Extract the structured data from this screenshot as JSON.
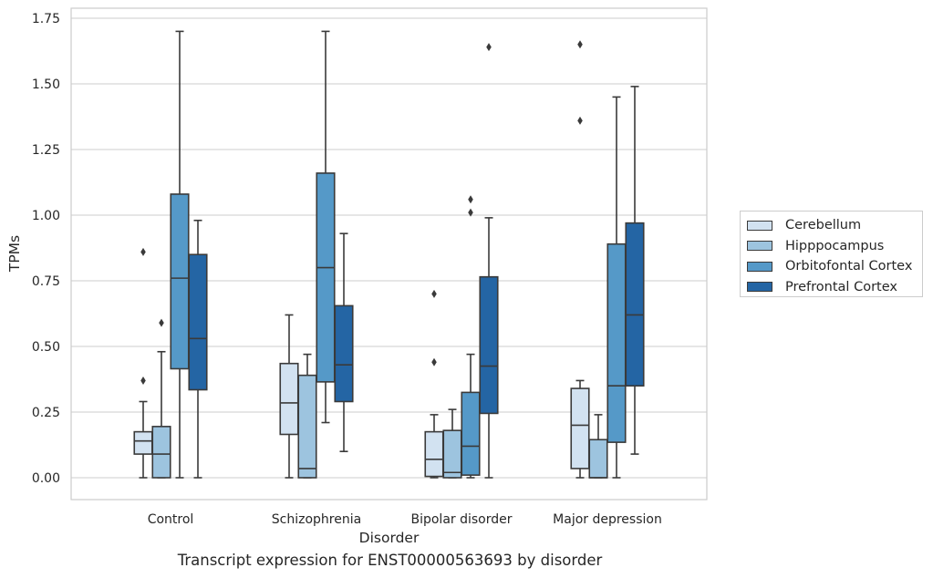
{
  "chart_data": {
    "type": "box",
    "title": "Transcript expression for ENST00000563693 by disorder",
    "xlabel": "Disorder",
    "ylabel": "TPMs",
    "ylim": [
      -0.08,
      1.78
    ],
    "yticks": [
      0.0,
      0.25,
      0.5,
      0.75,
      1.0,
      1.25,
      1.5,
      1.75
    ],
    "ytick_labels": [
      "0.00",
      "0.25",
      "0.50",
      "0.75",
      "1.00",
      "1.25",
      "1.50",
      "1.75"
    ],
    "categories": [
      "Control",
      "Schizophrenia",
      "Bipolar disorder",
      "Major depression"
    ],
    "grid": "horizontal",
    "legend_position": "right",
    "series": [
      {
        "name": "Cerebellum",
        "color": "#d2e2f1",
        "boxes": [
          {
            "whislo": 0.0,
            "q1": 0.09,
            "med": 0.14,
            "q3": 0.175,
            "whishi": 0.29,
            "fliers": [
              0.37,
              0.86
            ]
          },
          {
            "whislo": 0.0,
            "q1": 0.165,
            "med": 0.285,
            "q3": 0.435,
            "whishi": 0.62,
            "fliers": []
          },
          {
            "whislo": 0.0,
            "q1": 0.005,
            "med": 0.07,
            "q3": 0.175,
            "whishi": 0.24,
            "fliers": [
              0.44,
              0.7
            ]
          },
          {
            "whislo": 0.0,
            "q1": 0.035,
            "med": 0.2,
            "q3": 0.34,
            "whishi": 0.37,
            "fliers": [
              1.36,
              1.65
            ]
          }
        ]
      },
      {
        "name": "Hipppocampus",
        "color": "#9dc4df",
        "boxes": [
          {
            "whislo": 0.0,
            "q1": 0.0,
            "med": 0.09,
            "q3": 0.195,
            "whishi": 0.48,
            "fliers": [
              0.59
            ]
          },
          {
            "whislo": 0.0,
            "q1": 0.0,
            "med": 0.035,
            "q3": 0.39,
            "whishi": 0.47,
            "fliers": []
          },
          {
            "whislo": 0.0,
            "q1": 0.0,
            "med": 0.02,
            "q3": 0.18,
            "whishi": 0.26,
            "fliers": []
          },
          {
            "whislo": 0.0,
            "q1": 0.0,
            "med": 0.0,
            "q3": 0.145,
            "whishi": 0.24,
            "fliers": []
          }
        ]
      },
      {
        "name": "Orbitofontal Cortex",
        "color": "#5599c8",
        "boxes": [
          {
            "whislo": 0.0,
            "q1": 0.415,
            "med": 0.76,
            "q3": 1.08,
            "whishi": 1.7,
            "fliers": []
          },
          {
            "whislo": 0.21,
            "q1": 0.365,
            "med": 0.8,
            "q3": 1.16,
            "whishi": 1.7,
            "fliers": []
          },
          {
            "whislo": 0.0,
            "q1": 0.01,
            "med": 0.12,
            "q3": 0.325,
            "whishi": 0.47,
            "fliers": [
              1.01,
              1.06
            ]
          },
          {
            "whislo": 0.0,
            "q1": 0.135,
            "med": 0.35,
            "q3": 0.89,
            "whishi": 1.45,
            "fliers": []
          }
        ]
      },
      {
        "name": "Prefrontal Cortex",
        "color": "#2465a4",
        "boxes": [
          {
            "whislo": 0.0,
            "q1": 0.335,
            "med": 0.53,
            "q3": 0.85,
            "whishi": 0.98,
            "fliers": []
          },
          {
            "whislo": 0.1,
            "q1": 0.29,
            "med": 0.43,
            "q3": 0.655,
            "whishi": 0.93,
            "fliers": []
          },
          {
            "whislo": 0.0,
            "q1": 0.245,
            "med": 0.425,
            "q3": 0.765,
            "whishi": 0.99,
            "fliers": [
              1.64
            ]
          },
          {
            "whislo": 0.09,
            "q1": 0.35,
            "med": 0.62,
            "q3": 0.97,
            "whishi": 1.49,
            "fliers": []
          }
        ]
      }
    ]
  }
}
